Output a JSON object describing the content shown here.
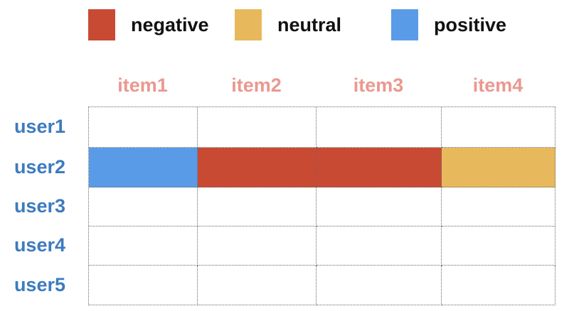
{
  "figure": {
    "legend": [
      {
        "label": "negative",
        "color": "#C94A33"
      },
      {
        "label": "neutral",
        "color": "#E8B85C"
      },
      {
        "label": "positive",
        "color": "#5A9BE8"
      }
    ],
    "columns": [
      "item1",
      "item2",
      "item3",
      "item4"
    ],
    "rows": [
      "user1",
      "user2",
      "user3",
      "user4",
      "user5"
    ],
    "cells": [
      [
        null,
        null,
        null,
        null
      ],
      [
        "positive",
        "negative",
        "negative",
        "neutral"
      ],
      [
        null,
        null,
        null,
        null
      ],
      [
        null,
        null,
        null,
        null
      ],
      [
        null,
        null,
        null,
        null
      ]
    ]
  },
  "colors": {
    "negative": "#C94A33",
    "neutral": "#E8B85C",
    "positive": "#5A9BE8",
    "column_header_text": "#EA9890",
    "row_header_text": "#3D7BBE",
    "legend_text": "#111111",
    "grid_border": "#666666",
    "background": "#FFFFFF"
  },
  "chart_data": {
    "type": "heatmap",
    "title": "",
    "x_categories": [
      "item1",
      "item2",
      "item3",
      "item4"
    ],
    "y_categories": [
      "user1",
      "user2",
      "user3",
      "user4",
      "user5"
    ],
    "cells": [
      [
        null,
        null,
        null,
        null
      ],
      [
        "positive",
        "negative",
        "negative",
        "neutral"
      ],
      [
        null,
        null,
        null,
        null
      ],
      [
        null,
        null,
        null,
        null
      ],
      [
        null,
        null,
        null,
        null
      ]
    ],
    "legend_entries": [
      "negative",
      "neutral",
      "positive"
    ],
    "legend_position": "top",
    "color_map": {
      "negative": "#C94A33",
      "neutral": "#E8B85C",
      "positive": "#5A9BE8"
    },
    "grid": "dotted",
    "empty_cell_color": "#FFFFFF"
  }
}
